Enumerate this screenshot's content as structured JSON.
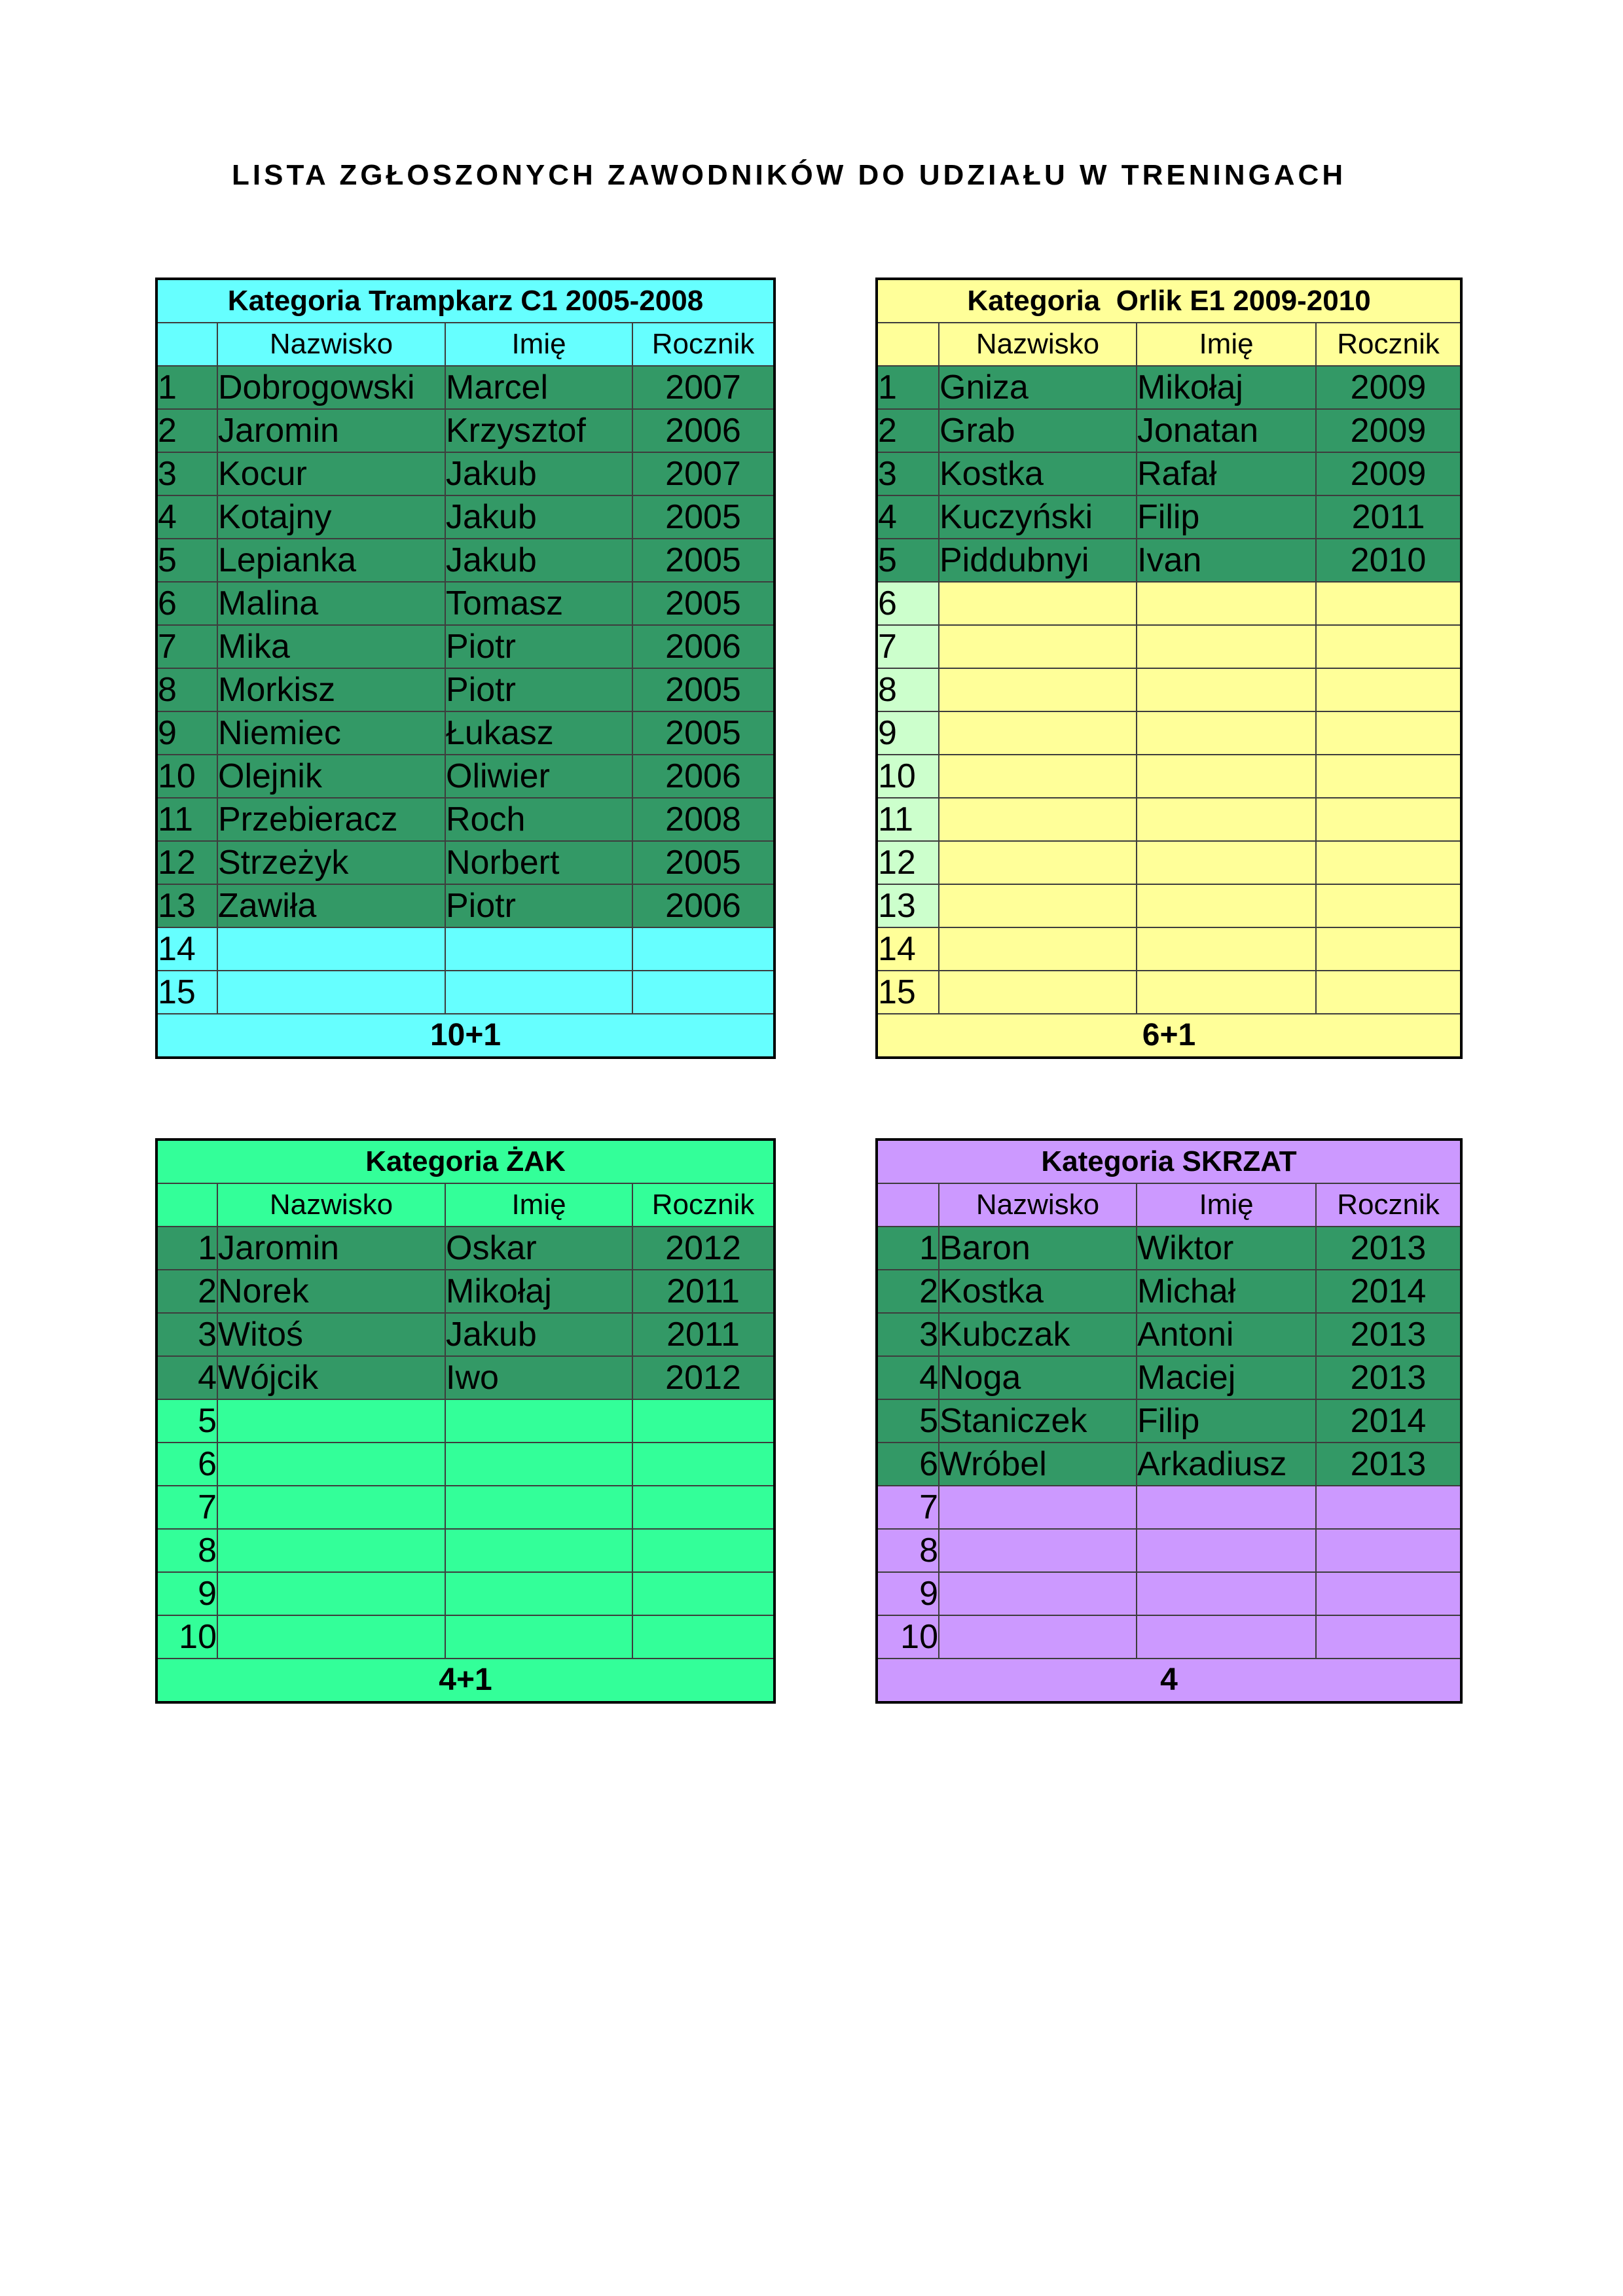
{
  "page": {
    "title": "LISTA ZGŁOSZONYCH ZAWODNIKÓW DO UDZIAŁU W TRENINGACH"
  },
  "columns": {
    "nazwisko": "Nazwisko",
    "imie": "Imię",
    "rocznik": "Rocznik"
  },
  "colors": {
    "filled_row_green": "#339966",
    "trampkarz_cyan": "#66FFFF",
    "orlik_yellow": "#FFFF99",
    "orlik_number_light_green": "#CCFFCC",
    "zak_spring_green": "#33FF99",
    "skrzat_purple": "#CC99FF"
  },
  "tables": [
    {
      "key": "trampkarz",
      "title": "Kategoria Trampkarz C1 2005-2008",
      "footer": "10+1",
      "total_rows": 15,
      "number_align": "left",
      "theme": "#66FFFF",
      "number_highlight": null,
      "players": [
        {
          "nr": "1",
          "nazwisko": "Dobrogowski",
          "imie": "Marcel",
          "rocznik": "2007"
        },
        {
          "nr": "2",
          "nazwisko": "Jaromin",
          "imie": "Krzysztof",
          "rocznik": "2006"
        },
        {
          "nr": "3",
          "nazwisko": "Kocur",
          "imie": "Jakub",
          "rocznik": "2007"
        },
        {
          "nr": "4",
          "nazwisko": "Kotajny",
          "imie": "Jakub",
          "rocznik": "2005"
        },
        {
          "nr": "5",
          "nazwisko": "Lepianka",
          "imie": "Jakub",
          "rocznik": "2005"
        },
        {
          "nr": "6",
          "nazwisko": "Malina",
          "imie": "Tomasz",
          "rocznik": "2005"
        },
        {
          "nr": "7",
          "nazwisko": "Mika",
          "imie": "Piotr",
          "rocznik": "2006"
        },
        {
          "nr": "8",
          "nazwisko": "Morkisz",
          "imie": "Piotr",
          "rocznik": "2005"
        },
        {
          "nr": "9",
          "nazwisko": "Niemiec",
          "imie": "Łukasz",
          "rocznik": "2005"
        },
        {
          "nr": "10",
          "nazwisko": "Olejnik",
          "imie": "Oliwier",
          "rocznik": "2006"
        },
        {
          "nr": "11",
          "nazwisko": "Przebieracz",
          "imie": "Roch",
          "rocznik": "2008"
        },
        {
          "nr": "12",
          "nazwisko": "Strzeżyk",
          "imie": "Norbert",
          "rocznik": "2005"
        },
        {
          "nr": "13",
          "nazwisko": "Zawiła",
          "imie": "Piotr",
          "rocznik": "2006"
        }
      ]
    },
    {
      "key": "orlik",
      "title": "Kategoria  Orlik E1 2009-2010",
      "footer": "6+1",
      "total_rows": 15,
      "number_align": "left",
      "theme": "#FFFF99",
      "number_highlight": {
        "from": 6,
        "to": 13,
        "color": "#CCFFCC"
      },
      "players": [
        {
          "nr": "1",
          "nazwisko": "Gniza",
          "imie": "Mikołaj",
          "rocznik": "2009"
        },
        {
          "nr": "2",
          "nazwisko": "Grab",
          "imie": "Jonatan",
          "rocznik": "2009"
        },
        {
          "nr": "3",
          "nazwisko": "Kostka",
          "imie": "Rafał",
          "rocznik": "2009"
        },
        {
          "nr": "4",
          "nazwisko": "Kuczyński",
          "imie": "Filip",
          "rocznik": "2011"
        },
        {
          "nr": "5",
          "nazwisko": "Piddubnyi",
          "imie": "Ivan",
          "rocznik": "2010"
        }
      ]
    },
    {
      "key": "zak",
      "title": "Kategoria ŻAK",
      "footer": "4+1",
      "total_rows": 10,
      "number_align": "right",
      "theme": "#33FF99",
      "number_highlight": null,
      "players": [
        {
          "nr": "1",
          "nazwisko": "Jaromin",
          "imie": "Oskar",
          "rocznik": "2012"
        },
        {
          "nr": "2",
          "nazwisko": "Norek",
          "imie": "Mikołaj",
          "rocznik": "2011"
        },
        {
          "nr": "3",
          "nazwisko": "Witoś",
          "imie": "Jakub",
          "rocznik": "2011"
        },
        {
          "nr": "4",
          "nazwisko": "Wójcik",
          "imie": "Iwo",
          "rocznik": "2012"
        }
      ]
    },
    {
      "key": "skrzat",
      "title": "Kategoria SKRZAT",
      "footer": "4",
      "total_rows": 10,
      "number_align": "right",
      "theme": "#CC99FF",
      "number_highlight": null,
      "players": [
        {
          "nr": "1",
          "nazwisko": "Baron",
          "imie": "Wiktor",
          "rocznik": "2013"
        },
        {
          "nr": "2",
          "nazwisko": "Kostka",
          "imie": "Michał",
          "rocznik": "2014"
        },
        {
          "nr": "3",
          "nazwisko": "Kubczak",
          "imie": "Antoni",
          "rocznik": "2013"
        },
        {
          "nr": "4",
          "nazwisko": "Noga",
          "imie": "Maciej",
          "rocznik": "2013"
        },
        {
          "nr": "5",
          "nazwisko": "Staniczek",
          "imie": "Filip",
          "rocznik": "2014"
        },
        {
          "nr": "6",
          "nazwisko": "Wróbel",
          "imie": "Arkadiusz",
          "rocznik": "2013"
        }
      ]
    }
  ]
}
